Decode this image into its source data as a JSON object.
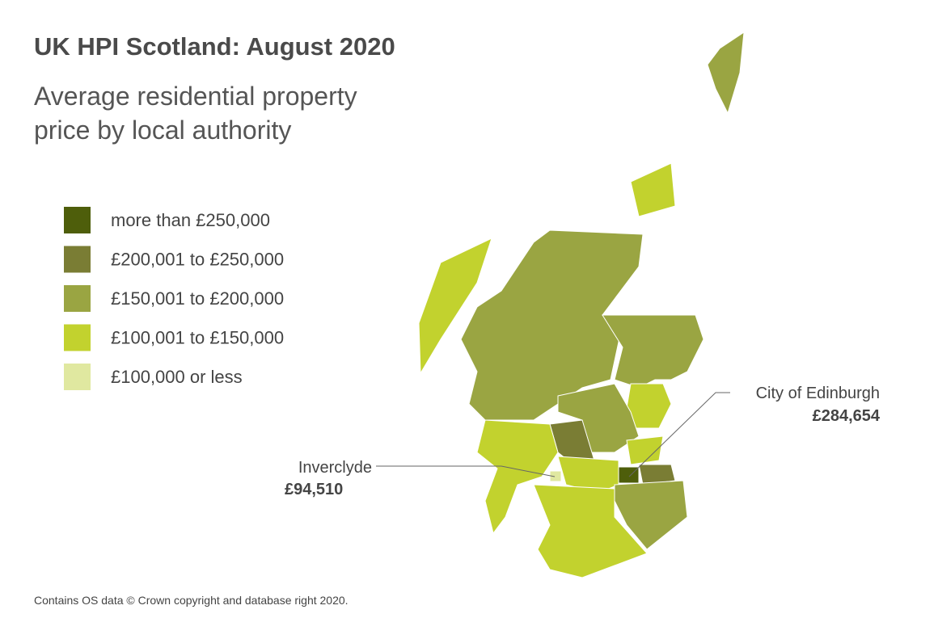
{
  "header": {
    "title": "UK HPI Scotland: August 2020",
    "subtitle": [
      "Average residential property",
      "price by local authority"
    ]
  },
  "legend": [
    {
      "label": "more than £250,000",
      "color": "#4e5e0b"
    },
    {
      "label": "£200,001 to £250,000",
      "color": "#7a7d34"
    },
    {
      "label": "£150,001 to £200,000",
      "color": "#9aa542"
    },
    {
      "label": "£100,001 to £150,000",
      "color": "#c2d22e"
    },
    {
      "label": "£100,000 or less",
      "color": "#e0e8a0"
    }
  ],
  "annotations": [
    {
      "name": "Inverclyde",
      "value": "£94,510"
    },
    {
      "name": "City of Edinburgh",
      "value": "£284,654"
    }
  ],
  "footer": "Contains OS data © Crown copyright and database right 2020."
}
